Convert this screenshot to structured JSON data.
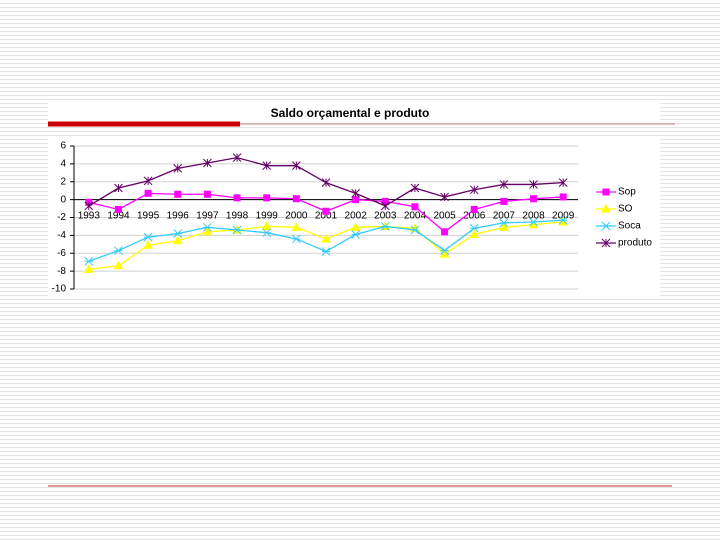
{
  "chart_data": {
    "type": "line",
    "title": "Saldo orçamental e produto",
    "categories": [
      "1993",
      "1994",
      "1995",
      "1996",
      "1997",
      "1998",
      "1999",
      "2000",
      "2001",
      "2002",
      "2003",
      "2004",
      "2005",
      "2006",
      "2007",
      "2008",
      "2009"
    ],
    "series": [
      {
        "name": "Sop",
        "color": "#ff00ff",
        "marker": "square",
        "values": [
          -0.3,
          -1.1,
          0.7,
          0.6,
          0.6,
          0.2,
          0.2,
          0.1,
          -1.3,
          0,
          -0.2,
          -0.8,
          -3.6,
          -1.1,
          -0.2,
          0.1,
          0.3
        ]
      },
      {
        "name": "SO",
        "color": "#ffff00",
        "marker": "triangle",
        "values": [
          -7.8,
          -7.4,
          -5.1,
          -4.6,
          -3.6,
          -3.4,
          -3.0,
          -3.1,
          -4.4,
          -3.1,
          -3.0,
          -3.2,
          -6.1,
          -3.9,
          -3.1,
          -2.8,
          -2.5
        ]
      },
      {
        "name": "Soca",
        "color": "#33ccff",
        "marker": "asterisk",
        "values": [
          -6.9,
          -5.7,
          -4.2,
          -3.8,
          -3.1,
          -3.4,
          -3.7,
          -4.4,
          -5.8,
          -3.9,
          -3.0,
          -3.4,
          -5.7,
          -3.2,
          -2.6,
          -2.5,
          -2.3
        ]
      },
      {
        "name": "produto",
        "color": "#660066",
        "marker": "star",
        "values": [
          -0.7,
          1.3,
          2.1,
          3.5,
          4.1,
          4.7,
          3.8,
          3.8,
          1.9,
          0.7,
          -0.7,
          1.3,
          0.3,
          1.1,
          1.7,
          1.7,
          1.9
        ]
      }
    ],
    "ylim": [
      -10,
      6
    ],
    "yticks": [
      -10,
      -8,
      -6,
      -4,
      -2,
      0,
      2,
      4,
      6
    ],
    "grid": true,
    "legend": "right"
  }
}
